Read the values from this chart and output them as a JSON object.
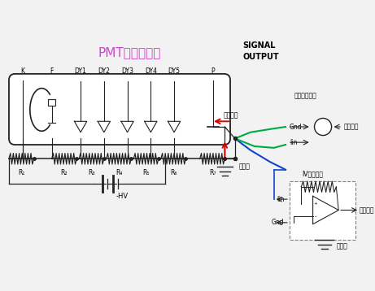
{
  "title": "PMT接线原理图",
  "title_color": "#cc44cc",
  "bg_color": "#f2f2f2",
  "signal_output_text": "SIGNAL\nOUTPUT",
  "electrode_labels": [
    "K",
    "F",
    "DY1",
    "DY2",
    "DY3",
    "DY4",
    "DY5",
    "P"
  ],
  "resistor_labels": [
    "R₁",
    "R₂",
    "R₃",
    "R₄",
    "R₅",
    "R₆",
    "R₇"
  ],
  "hv_label": "-HV",
  "gaoya_label": "高压地",
  "current_dir_label": "电流方向",
  "log_module_label": "对数转换模块",
  "iv_module_label": "IV转换模块",
  "voltage_sample1": "电压采样",
  "voltage_sample2": "电压采样",
  "sample_gnd": "采样地",
  "gnd_label": "Gnd",
  "iin_label": "Iin",
  "line_color": "#222222",
  "green_color": "#00aa44",
  "blue_color": "#1144cc",
  "red_color": "#dd0000"
}
